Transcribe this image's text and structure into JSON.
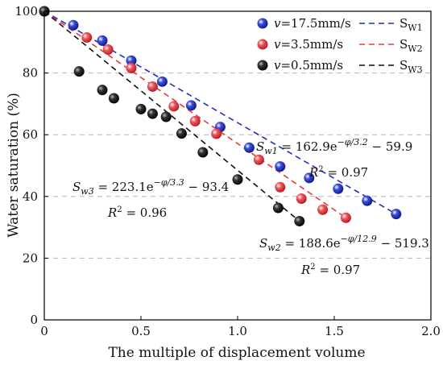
{
  "chart_data": {
    "type": "scatter",
    "title": "",
    "xlabel": "The multiple of displacement volume",
    "ylabel": "Water saturation (%)",
    "xlim": [
      0,
      2.0
    ],
    "ylim": [
      0,
      100
    ],
    "x_ticks": [
      "0",
      "0.5",
      "1.0",
      "1.5",
      "2.0"
    ],
    "y_ticks": [
      "0",
      "20",
      "40",
      "60",
      "80",
      "100"
    ],
    "grid": "horizontal dashed",
    "legend_position": "top-right",
    "series": [
      {
        "name": "v=17.5mm/s",
        "legend_label": "=17.5mm/s",
        "color": "#1f2fbf",
        "points": [
          [
            0,
            100
          ],
          [
            0.15,
            95.5
          ],
          [
            0.3,
            90.5
          ],
          [
            0.45,
            84
          ],
          [
            0.61,
            77.2
          ],
          [
            0.76,
            69.5
          ],
          [
            0.91,
            62.5
          ],
          [
            1.06,
            55.8
          ],
          [
            1.22,
            49.7
          ],
          [
            1.37,
            46
          ],
          [
            1.52,
            42.5
          ],
          [
            1.67,
            38.6
          ],
          [
            1.82,
            34.3
          ]
        ]
      },
      {
        "name": "v=3.5mm/s",
        "legend_label": "=3.5mm/s",
        "color": "#e8383d",
        "points": [
          [
            0,
            100
          ],
          [
            0.22,
            91.5
          ],
          [
            0.33,
            87.6
          ],
          [
            0.45,
            81.6
          ],
          [
            0.56,
            75.6
          ],
          [
            0.67,
            69.2
          ],
          [
            0.78,
            64.4
          ],
          [
            0.89,
            60.3
          ],
          [
            1.11,
            51.9
          ],
          [
            1.22,
            43
          ],
          [
            1.33,
            39.3
          ],
          [
            1.44,
            35.7
          ],
          [
            1.56,
            33.1
          ]
        ]
      },
      {
        "name": "v=0.5mm/s",
        "legend_label": "=0.5mm/s",
        "color": "#111111",
        "points": [
          [
            0,
            100
          ],
          [
            0.18,
            80.5
          ],
          [
            0.3,
            74.5
          ],
          [
            0.36,
            71.8
          ],
          [
            0.5,
            68.3
          ],
          [
            0.56,
            66.8
          ],
          [
            0.63,
            65.8
          ],
          [
            0.71,
            60.4
          ],
          [
            0.82,
            54.3
          ],
          [
            1.0,
            45.5
          ],
          [
            1.21,
            36.3
          ],
          [
            1.32,
            32
          ]
        ]
      }
    ],
    "fit_lines": [
      {
        "name": "SW1",
        "color": "#1f2fbf",
        "x_range": [
          0,
          1.82
        ]
      },
      {
        "name": "SW2",
        "color": "#e8383d",
        "x_range": [
          0,
          1.56
        ]
      },
      {
        "name": "SW3",
        "color": "#111111",
        "x_range": [
          0,
          1.32
        ]
      }
    ],
    "legend": {
      "markers": [
        "v",
        "v",
        "v"
      ],
      "lines": [
        {
          "prefix": "S",
          "sub": "W1"
        },
        {
          "prefix": "S",
          "sub": "W2"
        },
        {
          "prefix": "S",
          "sub": "W3"
        }
      ]
    },
    "annotations": [
      {
        "id": "w1",
        "var": "S",
        "sub": "w1",
        "formula": " = 162.9e",
        "exp": "−φ/3.2",
        "tail": " − 59.9",
        "r2": "= 0.97"
      },
      {
        "id": "w3",
        "var": "S",
        "sub": "w3",
        "formula": " = 223.1e",
        "exp": "−φ/3.3",
        "tail": " − 93.4",
        "r2": "= 0.96"
      },
      {
        "id": "w2",
        "var": "S",
        "sub": "w2",
        "formula": " = 188.6e",
        "exp": "−φ/12.9",
        "tail": " − 519.3",
        "r2": "= 0.97"
      }
    ]
  }
}
